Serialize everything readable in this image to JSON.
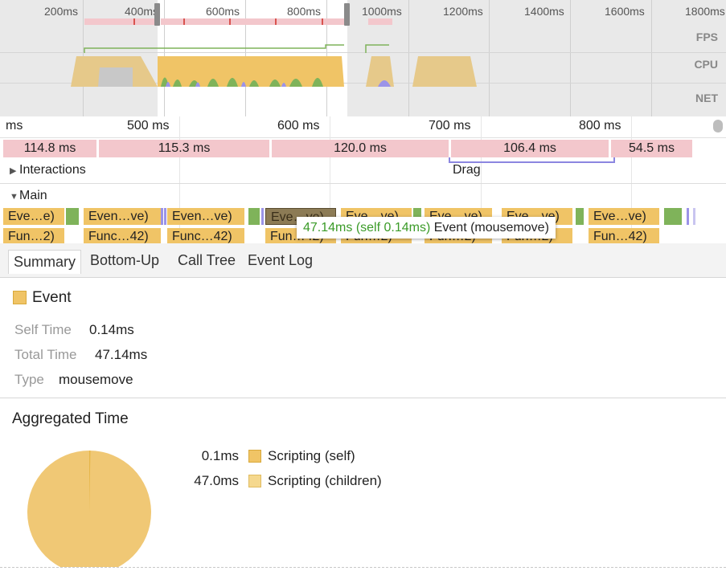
{
  "overview": {
    "ticks": [
      "200ms",
      "400ms",
      "600ms",
      "800ms",
      "1000ms",
      "1200ms",
      "1400ms",
      "1600ms",
      "1800ms"
    ],
    "lanes": {
      "fps": "FPS",
      "cpu": "CPU",
      "net": "NET"
    }
  },
  "ruler": {
    "ticks": [
      "ms",
      "500 ms",
      "600 ms",
      "700 ms",
      "800 ms"
    ]
  },
  "frames": [
    "114.8 ms",
    "115.3 ms",
    "120.0 ms",
    "106.4 ms",
    "54.5 ms"
  ],
  "tracks": {
    "interactions": {
      "label": "Interactions",
      "drag_label": "Drag"
    },
    "main": {
      "label": "Main"
    }
  },
  "flame": {
    "events": [
      "Eve…e)",
      "Even…ve)",
      "Even…ve)",
      "Eve…ve)",
      "Eve…ve)",
      "Eve…ve)",
      "Eve…ve)",
      "Eve…ve)"
    ],
    "functions": [
      "Fun…2)",
      "Func…42)",
      "Func…42)",
      "Fun…42)",
      "Fun…2)",
      "Fun…2)",
      "Fun…2)",
      "Fun…42)"
    ]
  },
  "tooltip": {
    "time": "47.14ms (self 0.14ms)",
    "label": "Event (mousemove)"
  },
  "tabs": [
    "Summary",
    "Bottom-Up",
    "Call Tree",
    "Event Log"
  ],
  "summary": {
    "title": "Event",
    "self_time_label": "Self Time",
    "self_time": "0.14ms",
    "total_time_label": "Total Time",
    "total_time": "47.14ms",
    "type_label": "Type",
    "type": "mousemove"
  },
  "aggregated": {
    "title": "Aggregated Time",
    "items": [
      {
        "value": "0.1ms",
        "label": "Scripting (self)",
        "color": "#f0c466"
      },
      {
        "value": "47.0ms",
        "label": "Scripting (children)",
        "color": "#f5d88e"
      }
    ]
  },
  "colors": {
    "scripting": "#f0c466",
    "rendering": "#9b93e8",
    "painting": "#7fb35a",
    "frame": "#f3c7cc"
  }
}
